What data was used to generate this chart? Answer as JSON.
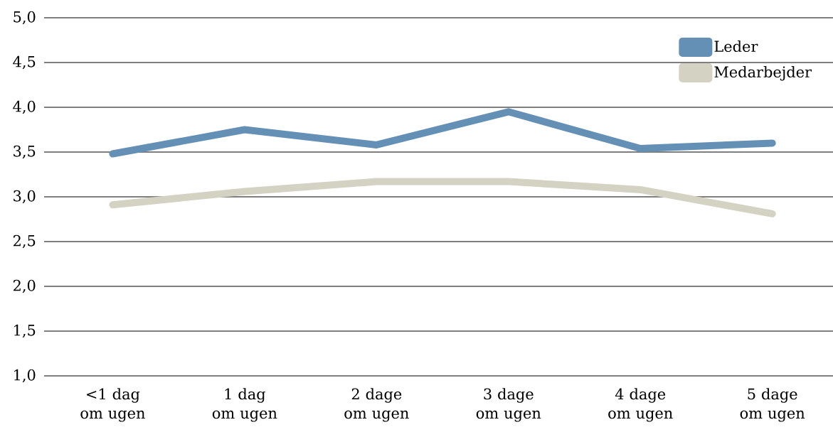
{
  "chart_data": {
    "type": "line",
    "categories": [
      "<1 dag om ugen",
      "1 dag om ugen",
      "2 dage om ugen",
      "3 dage om ugen",
      "4 dage om ugen",
      "5 dage om ugen"
    ],
    "series": [
      {
        "name": "Leder",
        "color": "#6590b5",
        "values": [
          3.48,
          3.75,
          3.58,
          3.95,
          3.54,
          3.6
        ]
      },
      {
        "name": "Medarbejder",
        "color": "#d3d2c3",
        "values": [
          2.91,
          3.06,
          3.17,
          3.17,
          3.08,
          2.81
        ]
      }
    ],
    "ylim": [
      1,
      5
    ],
    "yticks": [
      {
        "value": 1,
        "label": "1,0"
      },
      {
        "value": 1.5,
        "label": "1,5"
      },
      {
        "value": 2,
        "label": "2,0"
      },
      {
        "value": 2.5,
        "label": "2,5"
      },
      {
        "value": 3,
        "label": "3,0"
      },
      {
        "value": 3.5,
        "label": "3,5"
      },
      {
        "value": 4,
        "label": "4,0"
      },
      {
        "value": 4.5,
        "label": "4,5"
      },
      {
        "value": 5,
        "label": "5,0"
      }
    ],
    "grid": "y",
    "legend": "top right",
    "line_style": "solid"
  }
}
